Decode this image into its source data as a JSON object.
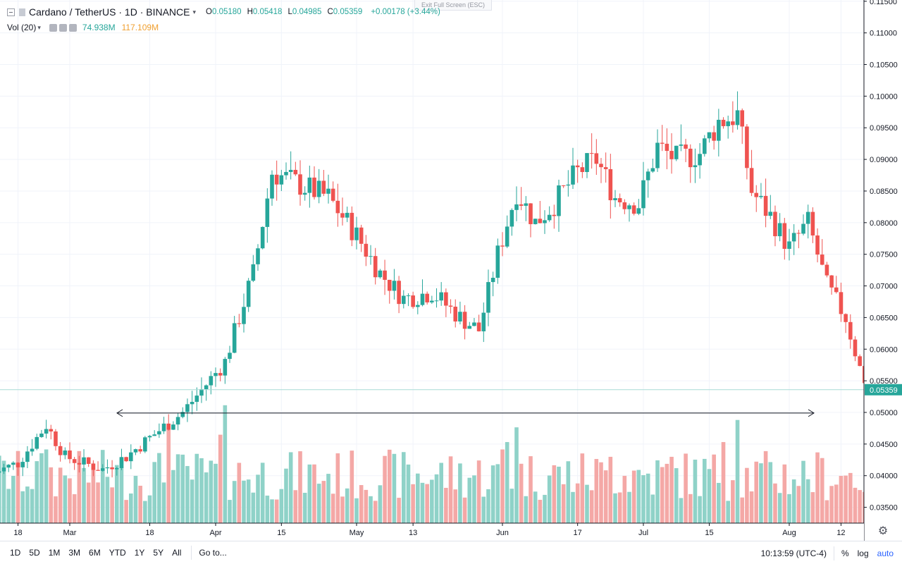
{
  "header": {
    "symbol": "Cardano / TetherUS · 1D · BINANCE",
    "ohlc": {
      "o_label": "O",
      "o": "0.05180",
      "h_label": "H",
      "h": "0.05418",
      "l_label": "L",
      "l": "0.04985",
      "c_label": "C",
      "c": "0.05359",
      "change": "+0.00178 (+3.44%)"
    },
    "volume_indicator": {
      "label": "Vol (20)",
      "value1": "74.938M",
      "value2": "117.109M"
    },
    "exit_full_screen": "Exit Full Screen (ESC)"
  },
  "colors": {
    "up": "#26a69a",
    "down": "#ef5350",
    "up_volume": "#8fd2c8",
    "down_volume": "#f4a8a6",
    "last_price_tag": "#26a69a",
    "accent_blue": "#2962ff"
  },
  "chart_data": {
    "type": "candlestick",
    "symbol": "Cardano / TetherUS",
    "interval": "1D",
    "exchange": "BINANCE",
    "ylim": [
      0.0325,
      0.1152
    ],
    "y_ticks": [
      "0.11500",
      "0.11000",
      "0.10500",
      "0.10000",
      "0.09500",
      "0.09000",
      "0.08500",
      "0.08000",
      "0.07500",
      "0.07000",
      "0.06500",
      "0.06000",
      "0.05500",
      "0.05000",
      "0.04500",
      "0.04000",
      "0.03500"
    ],
    "x_tick_labels": [
      "18",
      "Mar",
      "18",
      "Apr",
      "15",
      "May",
      "13",
      "Jun",
      "17",
      "Jul",
      "15",
      "Aug",
      "12"
    ],
    "last_price": "0.05359",
    "support_line_price": 0.0499,
    "anchors": [
      [
        "Feb 13",
        0.0405
      ],
      [
        "Feb 18",
        0.042
      ],
      [
        "Feb 24",
        0.048
      ],
      [
        "Feb 28",
        0.043
      ],
      [
        "Mar 8",
        0.041
      ],
      [
        "Mar 13",
        0.043
      ],
      [
        "Mar 18",
        0.046
      ],
      [
        "Mar 25",
        0.05
      ],
      [
        "Apr 3",
        0.058
      ],
      [
        "Apr 9",
        0.072
      ],
      [
        "Apr 13",
        0.088
      ],
      [
        "Apr 19",
        0.086
      ],
      [
        "Apr 25",
        0.084
      ],
      [
        "May 1",
        0.078
      ],
      [
        "May 6",
        0.072
      ],
      [
        "May 11",
        0.068
      ],
      [
        "May 17",
        0.069
      ],
      [
        "May 23",
        0.065
      ],
      [
        "May 27",
        0.063
      ],
      [
        "May 31",
        0.075
      ],
      [
        "Jun 4",
        0.085
      ],
      [
        "Jun 8",
        0.08
      ],
      [
        "Jun 12",
        0.083
      ],
      [
        "Jun 17",
        0.088
      ],
      [
        "Jun 21",
        0.09
      ],
      [
        "Jun 25",
        0.084
      ],
      [
        "Jun 30",
        0.083
      ],
      [
        "Jul 4",
        0.092
      ],
      [
        "Jul 8",
        0.09
      ],
      [
        "Jul 13",
        0.091
      ],
      [
        "Jul 17",
        0.096
      ],
      [
        "Jul 21",
        0.097
      ],
      [
        "Jul 24",
        0.085
      ],
      [
        "Jul 28",
        0.081
      ],
      [
        "Aug 1",
        0.076
      ],
      [
        "Aug 5",
        0.08
      ],
      [
        "Aug 9",
        0.07
      ],
      [
        "Aug 13",
        0.065
      ],
      [
        "Aug 16",
        0.057
      ],
      [
        "Aug 19",
        0.0518
      ],
      [
        "Aug 20",
        0.0536
      ]
    ],
    "volume_note": "Volume bars shown at bottom; peaks near early April, mid June and mid July"
  },
  "bottom_bar": {
    "ranges": [
      "1D",
      "5D",
      "1M",
      "3M",
      "6M",
      "YTD",
      "1Y",
      "5Y",
      "All"
    ],
    "goto": "Go to...",
    "clock": "10:13:59 (UTC-4)",
    "percent": "%",
    "log": "log",
    "auto": "auto"
  },
  "icons": {
    "settings": "gear-icon"
  }
}
